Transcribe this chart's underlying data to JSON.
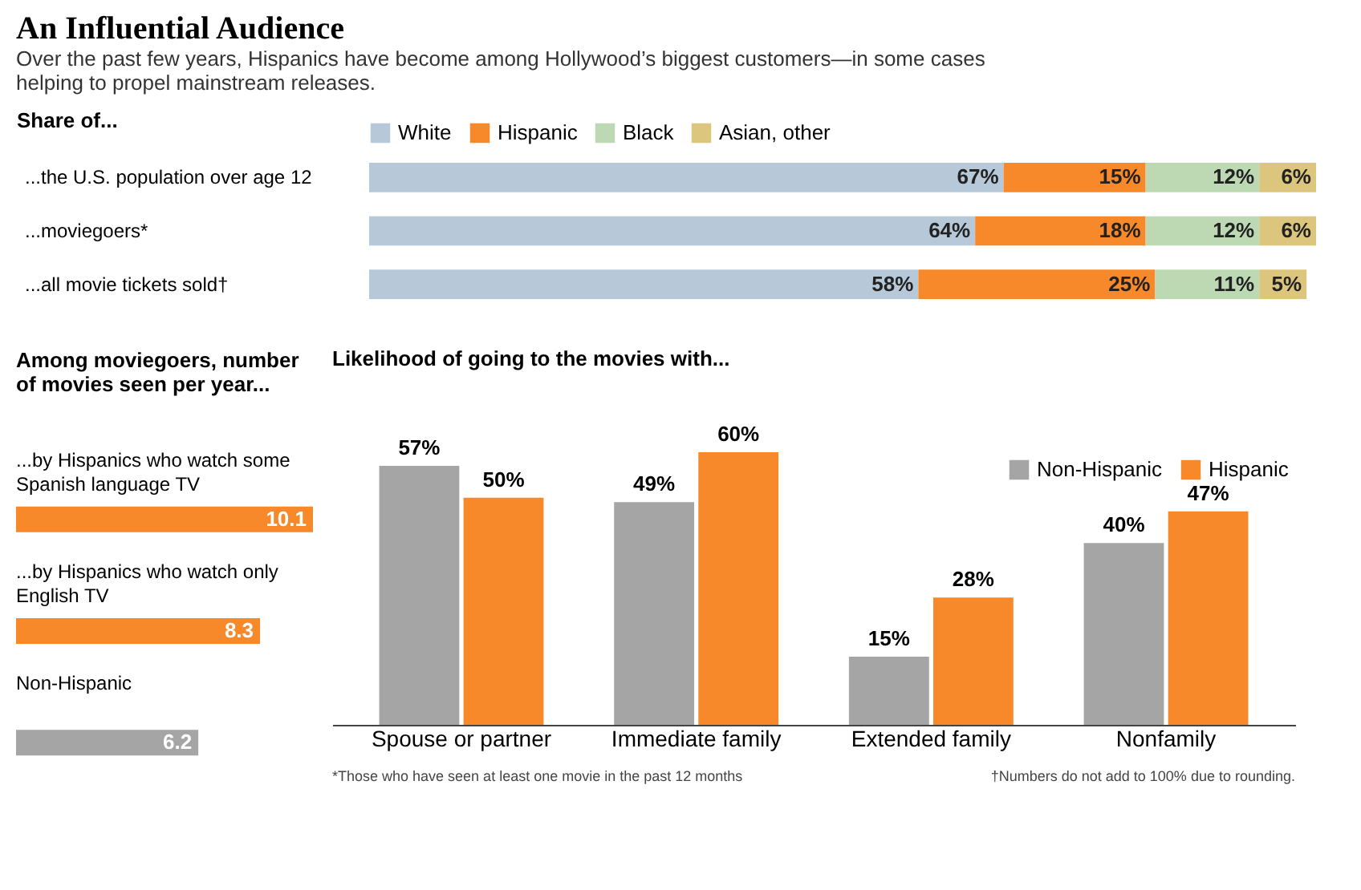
{
  "chart_data": [
    {
      "type": "bar",
      "orientation": "horizontal",
      "stacked": true,
      "title": "An Influential Audience",
      "subtitle": "Over the past few years, Hispanics have become among Hollywood’s biggest customers—in some cases helping to propel mainstream releases.",
      "ylabel": "Share of...",
      "legend": "top",
      "categories": [
        "...the U.S. population over age 12",
        "...moviegoers*",
        "...all movie tickets sold†"
      ],
      "series": [
        {
          "name": "White",
          "color": "#b7c9d8",
          "values": [
            67,
            64,
            58
          ],
          "value_labels": [
            "67%",
            "64%",
            "58%"
          ]
        },
        {
          "name": "Hispanic",
          "color": "#f7892a",
          "values": [
            15,
            18,
            25
          ],
          "value_labels": [
            "15%",
            "18%",
            "25%"
          ]
        },
        {
          "name": "Black",
          "color": "#bcd9b3",
          "values": [
            12,
            12,
            11
          ],
          "value_labels": [
            "12%",
            "12%",
            "11%"
          ]
        },
        {
          "name": "Asian, other",
          "color": "#dcc57c",
          "values": [
            6,
            6,
            5
          ],
          "value_labels": [
            "6%",
            "6%",
            "5%"
          ]
        }
      ]
    },
    {
      "type": "bar",
      "orientation": "horizontal",
      "title": "Among moviegoers, number of movies seen per year...",
      "categories": [
        "...by Hispanics who watch some Spanish language TV",
        "...by Hispanics who watch only English TV",
        "Non-Hispanic"
      ],
      "values": [
        10.1,
        8.3,
        6.2
      ],
      "colors": [
        "#f7892a",
        "#f7892a",
        "#a5a5a5"
      ],
      "data_labels": true
    },
    {
      "type": "bar",
      "title": "Likelihood of going to the movies with...",
      "legend": "top right",
      "categories": [
        "Spouse or partner",
        "Immediate family",
        "Extended family",
        "Nonfamily"
      ],
      "series": [
        {
          "name": "Non-Hispanic",
          "color": "#a5a5a5",
          "values": [
            57,
            49,
            15,
            40
          ],
          "value_labels": [
            "57%",
            "49%",
            "15%",
            "40%"
          ]
        },
        {
          "name": "Hispanic",
          "color": "#f7892a",
          "values": [
            50,
            60,
            28,
            47
          ],
          "value_labels": [
            "50%",
            "60%",
            "28%",
            "47%"
          ]
        }
      ],
      "annotations": [
        "*Those who have seen at least one movie in the past 12 months",
        "†Numbers do not add to 100% due to rounding."
      ]
    }
  ]
}
